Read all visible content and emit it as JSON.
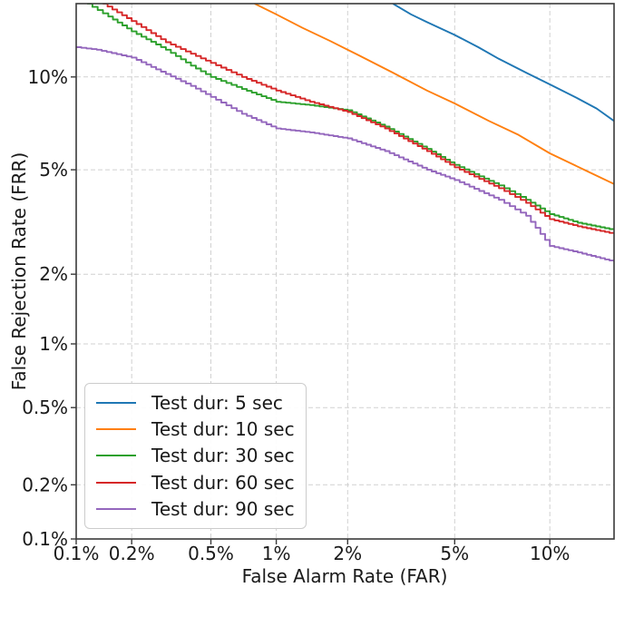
{
  "chart_data": {
    "type": "line",
    "chart_kind": "DET curve (FRR vs FAR)",
    "title": "",
    "xlabel": "False Alarm Rate (FAR)",
    "ylabel": "False Rejection Rate (FRR)",
    "x_scale": "probit",
    "y_scale": "probit",
    "xlim_pct": [
      0.1,
      15
    ],
    "ylim_pct": [
      0.1,
      16
    ],
    "x_ticks": {
      "values_pct": [
        0.1,
        0.2,
        0.5,
        1,
        2,
        5,
        10
      ],
      "labels": [
        "0.1%",
        "0.2%",
        "0.5%",
        "1%",
        "2%",
        "5%",
        "10%"
      ]
    },
    "y_ticks": {
      "values_pct": [
        10,
        5,
        2,
        1,
        0.5,
        0.2,
        0.1
      ],
      "labels": [
        "10%",
        "5%",
        "2%",
        "1%",
        "0.5%",
        "0.2%",
        "0.1%"
      ]
    },
    "grid": {
      "on": true,
      "line_style": "dashed",
      "color": "#c9c9c9"
    },
    "legend_position": "lower left",
    "series": [
      {
        "label": "Test dur: 5 sec",
        "color": "#1f77b4",
        "line_style": "smooth",
        "points_far_frr_pct": [
          [
            3.0,
            16.0
          ],
          [
            3.5,
            15.0
          ],
          [
            4.0,
            14.3
          ],
          [
            5.0,
            13.2
          ],
          [
            6.0,
            12.2
          ],
          [
            7.0,
            11.3
          ],
          [
            8.5,
            10.3
          ],
          [
            10.0,
            9.5
          ],
          [
            12.0,
            8.6
          ],
          [
            13.5,
            8.0
          ],
          [
            15.0,
            7.3
          ]
        ]
      },
      {
        "label": "Test dur: 10 sec",
        "color": "#ff7f0e",
        "line_style": "smooth",
        "points_far_frr_pct": [
          [
            0.8,
            16.0
          ],
          [
            1.0,
            15.0
          ],
          [
            1.3,
            13.8
          ],
          [
            1.7,
            12.7
          ],
          [
            2.2,
            11.6
          ],
          [
            3.0,
            10.3
          ],
          [
            4.0,
            9.1
          ],
          [
            5.0,
            8.3
          ],
          [
            6.5,
            7.3
          ],
          [
            8.0,
            6.6
          ],
          [
            10.0,
            5.7
          ],
          [
            12.5,
            5.0
          ],
          [
            15.0,
            4.45
          ]
        ]
      },
      {
        "label": "Test dur: 30 sec",
        "color": "#2ca02c",
        "line_style": "step",
        "points_far_frr_pct": [
          [
            0.115,
            16.0
          ],
          [
            0.15,
            14.8
          ],
          [
            0.2,
            13.5
          ],
          [
            0.3,
            12.0
          ],
          [
            0.4,
            10.8
          ],
          [
            0.5,
            10.0
          ],
          [
            0.7,
            9.2
          ],
          [
            1.0,
            8.4
          ],
          [
            1.4,
            8.2
          ],
          [
            2.0,
            7.9
          ],
          [
            2.8,
            7.0
          ],
          [
            4.0,
            5.9
          ],
          [
            5.0,
            5.2
          ],
          [
            7.0,
            4.4
          ],
          [
            8.5,
            3.9
          ],
          [
            10.0,
            3.45
          ],
          [
            12.0,
            3.2
          ],
          [
            15.0,
            3.0
          ]
        ]
      },
      {
        "label": "Test dur: 60 sec",
        "color": "#d62728",
        "line_style": "step",
        "points_far_frr_pct": [
          [
            0.14,
            16.0
          ],
          [
            0.2,
            14.4
          ],
          [
            0.3,
            12.6
          ],
          [
            0.5,
            11.0
          ],
          [
            0.7,
            10.0
          ],
          [
            1.0,
            9.1
          ],
          [
            1.4,
            8.4
          ],
          [
            2.0,
            7.8
          ],
          [
            2.8,
            6.9
          ],
          [
            4.0,
            5.8
          ],
          [
            5.0,
            5.1
          ],
          [
            7.0,
            4.3
          ],
          [
            8.5,
            3.8
          ],
          [
            10.0,
            3.3
          ],
          [
            12.0,
            3.1
          ],
          [
            15.0,
            2.9
          ]
        ]
      },
      {
        "label": "Test dur: 90 sec",
        "color": "#9467bd",
        "line_style": "step",
        "points_far_frr_pct": [
          [
            0.1,
            12.2
          ],
          [
            0.13,
            12.0
          ],
          [
            0.2,
            11.4
          ],
          [
            0.3,
            10.2
          ],
          [
            0.4,
            9.4
          ],
          [
            0.5,
            8.7
          ],
          [
            0.7,
            7.7
          ],
          [
            1.0,
            6.9
          ],
          [
            1.4,
            6.7
          ],
          [
            2.0,
            6.4
          ],
          [
            2.8,
            5.8
          ],
          [
            4.0,
            5.0
          ],
          [
            5.0,
            4.6
          ],
          [
            7.0,
            3.9
          ],
          [
            8.5,
            3.4
          ],
          [
            10.0,
            2.6
          ],
          [
            12.0,
            2.45
          ],
          [
            15.0,
            2.25
          ]
        ]
      }
    ]
  },
  "style": {
    "background": "#ffffff",
    "text_color": "#1a1a1a",
    "spine_color": "#3a3a3a",
    "grid_color": "#c9c9c9"
  }
}
